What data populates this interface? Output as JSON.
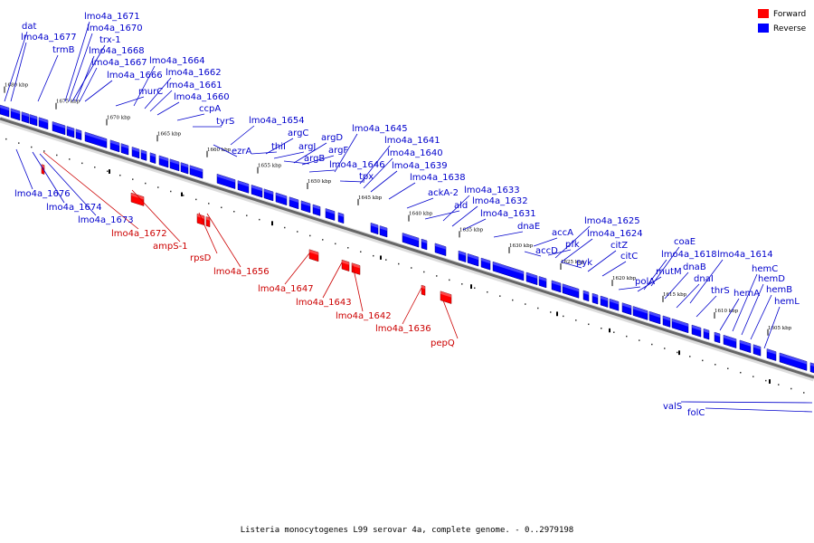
{
  "legend": {
    "forward": {
      "label": "Forward",
      "color": "#ff0000"
    },
    "reverse": {
      "label": "Reverse",
      "color": "#0000ff"
    }
  },
  "caption": "Listeria monocytogenes L99 serovar 4a, complete genome. - 0..2979198",
  "backbone_color": "#555555",
  "scale_ticks": [
    "1680 kbp",
    "1675 kbp",
    "1670 kbp",
    "1665 kbp",
    "1660 kbp",
    "1655 kbp",
    "1650 kbp",
    "1645 kbp",
    "1640 kbp",
    "1635 kbp",
    "1630 kbp",
    "1625 kbp",
    "1620 kbp",
    "1615 kbp",
    "1610 kbp",
    "1605 kbp"
  ],
  "reverse_labels": [
    "dat",
    "lmo4a_1677",
    "trmB",
    "lmo4a_1671",
    "lmo4a_1670",
    "trx-1",
    "lmo4a_1668",
    "lmo4a_1667",
    "lmo4a_1666",
    "murC",
    "lmo4a_1664",
    "lmo4a_1662",
    "lmo4a_1661",
    "lmo4a_1660",
    "ccpA",
    "tyrS",
    "ezrA",
    "lmo4a_1654",
    "thiI",
    "argC",
    "argJ",
    "argB",
    "argD",
    "argF",
    "lmo4a_1646",
    "tpx",
    "lmo4a_1645",
    "lmo4a_1641",
    "lmo4a_1640",
    "lmo4a_1639",
    "lmo4a_1638",
    "ackA-2",
    "ald",
    "lmo4a_1633",
    "lmo4a_1632",
    "lmo4a_1631",
    "dnaE",
    "accA",
    "accD",
    "pfk",
    "pyk",
    "lmo4a_1625",
    "lmo4a_1624",
    "citZ",
    "citC",
    "polA",
    "mutM",
    "coaE",
    "lmo4a_1618",
    "dnaB",
    "dnaI",
    "thrS",
    "lmo4a_1614",
    "hemA",
    "hemC",
    "hemD",
    "hemB",
    "hemL",
    "lmo4a_1676",
    "lmo4a_1674",
    "lmo4a_1673",
    "valS",
    "folC"
  ],
  "forward_labels": [
    "lmo4a_1672",
    "ampS-1",
    "rpsD",
    "lmo4a_1656",
    "lmo4a_1647",
    "lmo4a_1643",
    "lmo4a_1642",
    "lmo4a_1636",
    "pepQ"
  ]
}
